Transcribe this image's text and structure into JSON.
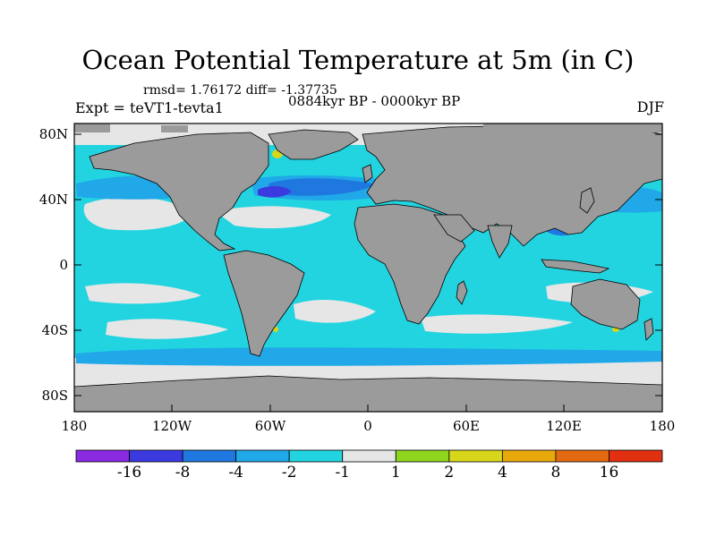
{
  "title": "Ocean Potential Temperature at 5m (in C)",
  "stats": "rmsd= 1.76172 diff= -1.37735",
  "experiment": "Expt = teVT1-tevta1",
  "period": "0884kyr BP - 0000kyr BP",
  "season": "DJF",
  "axes": {
    "y_ticks": [
      "80N",
      "40N",
      "0",
      "40S",
      "80S"
    ],
    "x_ticks": [
      "180",
      "120W",
      "60W",
      "0",
      "60E",
      "120E",
      "180"
    ]
  },
  "colorbar": {
    "labels": [
      "-16",
      "-8",
      "-4",
      "-2",
      "-1",
      "1",
      "2",
      "4",
      "8",
      "16"
    ],
    "colors": [
      "#8a2be2",
      "#3a3adf",
      "#1f78e0",
      "#20a8e8",
      "#22d4e0",
      "#e6e6e6",
      "#8ed61e",
      "#d8d61a",
      "#e8a80c",
      "#e36a10",
      "#e03010"
    ]
  },
  "colors": {
    "land": "#9b9b9b",
    "ocean_default": "#22d4e0",
    "neutral": "#e6e6e6",
    "light_blue": "#20a8e8",
    "mid_blue": "#1f78e0",
    "dark_blue": "#3a3adf",
    "green": "#8ed61e",
    "yellow": "#d8d61a"
  }
}
